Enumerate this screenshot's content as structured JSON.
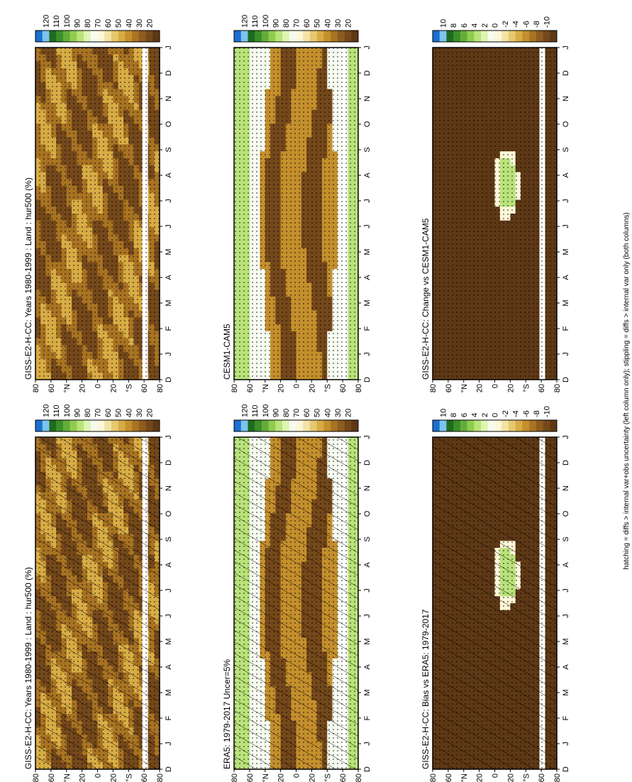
{
  "footnote": "hatching = diffs > internal var+obs uncertainty (left column only); stippling = diffs > internal var only (both columns)",
  "month_labels": [
    "D",
    "J",
    "F",
    "M",
    "A",
    "M",
    "J",
    "J",
    "A",
    "S",
    "O",
    "N",
    "D",
    "J"
  ],
  "lat_labels": [
    "80",
    "60",
    "°N",
    "20",
    "0",
    "20",
    "°S",
    "60",
    "80"
  ],
  "abs_scale": {
    "labels": [
      "120",
      "110",
      "100",
      "90",
      "80",
      "70",
      "60",
      "50",
      "40",
      "30",
      "20"
    ],
    "colors": [
      "#1a6fd1",
      "#7cc3ee",
      "#1e6b1e",
      "#3a8f2a",
      "#62ad3a",
      "#8fcc4e",
      "#b9e37a",
      "#def5b2",
      "#f6fbf0",
      "#fdf6d8",
      "#f3e3a6",
      "#e6c870",
      "#d8ac45",
      "#c48f2c",
      "#a87322",
      "#8d5c1e",
      "#74481a",
      "#5e3815"
    ]
  },
  "diff_scale": {
    "labels": [
      "10",
      "8",
      "6",
      "4",
      "2",
      "0",
      "-2",
      "-4",
      "-6",
      "-8",
      "-10"
    ],
    "colors": [
      "#1a6fd1",
      "#7cc3ee",
      "#1e6b1e",
      "#3a8f2a",
      "#62ad3a",
      "#8fcc4e",
      "#b9e37a",
      "#def5b2",
      "#f6fbf0",
      "#fdf6d8",
      "#f3e3a6",
      "#e6c870",
      "#d8ac45",
      "#c48f2c",
      "#a87322",
      "#8d5c1e",
      "#74481a",
      "#5e3815"
    ]
  },
  "chart_data": [
    {
      "type": "heatmap",
      "id": "tl",
      "title": "GISS-E2-H-CC: Years 1980-1999 : Land : hur500 (%)",
      "xlabel": "",
      "ylabel": "",
      "x_categories": [
        "D",
        "J",
        "F",
        "M",
        "A",
        "M",
        "J",
        "J",
        "A",
        "S",
        "O",
        "N",
        "D",
        "J"
      ],
      "y_ticks": [
        "80",
        "60",
        "°N",
        "20",
        "0",
        "20",
        "°S",
        "60",
        "80"
      ],
      "colorbar": "abs",
      "hatching": true,
      "stippling": true,
      "description_values": {
        "dominant_range": [
          20,
          45
        ]
      }
    },
    {
      "type": "heatmap",
      "id": "tr",
      "title": "GISS-E2-H-CC: Years 1980-1999 : Land : hur500 (%)",
      "xlabel": "",
      "ylabel": "",
      "x_categories": [
        "D",
        "J",
        "F",
        "M",
        "A",
        "M",
        "J",
        "J",
        "A",
        "S",
        "O",
        "N",
        "D",
        "J"
      ],
      "y_ticks": [
        "80",
        "60",
        "°N",
        "20",
        "0",
        "20",
        "°S",
        "60",
        "80"
      ],
      "colorbar": "abs",
      "hatching": false,
      "stippling": true,
      "description_values": {
        "dominant_range": [
          20,
          45
        ]
      }
    },
    {
      "type": "heatmap",
      "id": "ml",
      "title": "ERA5: 1979-2017 Uncer=5%",
      "xlabel": "",
      "ylabel": "",
      "x_categories": [
        "D",
        "J",
        "F",
        "M",
        "A",
        "M",
        "J",
        "J",
        "A",
        "S",
        "O",
        "N",
        "D",
        "J"
      ],
      "y_ticks": [
        "80",
        "60",
        "°N",
        "20",
        "0",
        "20",
        "°S",
        "60",
        "80"
      ],
      "colorbar": "abs",
      "hatching": true,
      "stippling": true,
      "description_values": {
        "high_lat_range": [
          80,
          95
        ],
        "subtropic_range": [
          25,
          45
        ]
      }
    },
    {
      "type": "heatmap",
      "id": "mr",
      "title": "CESM1-CAM5",
      "xlabel": "",
      "ylabel": "",
      "x_categories": [
        "D",
        "J",
        "F",
        "M",
        "A",
        "M",
        "J",
        "J",
        "A",
        "S",
        "O",
        "N",
        "D",
        "J"
      ],
      "y_ticks": [
        "80",
        "60",
        "°N",
        "20",
        "0",
        "20",
        "°S",
        "60",
        "80"
      ],
      "colorbar": "abs",
      "hatching": false,
      "stippling": true,
      "description_values": {
        "high_lat_range": [
          80,
          95
        ],
        "subtropic_range": [
          25,
          45
        ]
      }
    },
    {
      "type": "heatmap",
      "id": "bl",
      "title": "GISS-E2-H-CC: Bias vs ERA5: 1979-2017",
      "xlabel": "",
      "ylabel": "",
      "x_categories": [
        "D",
        "J",
        "F",
        "M",
        "A",
        "M",
        "J",
        "J",
        "A",
        "S",
        "O",
        "N",
        "D",
        "J"
      ],
      "y_ticks": [
        "80",
        "60",
        "°N",
        "20",
        "0",
        "20",
        "°S",
        "60",
        "80"
      ],
      "colorbar": "diff",
      "hatching": true,
      "stippling": true,
      "description_values": {
        "dominant_value": -10
      }
    },
    {
      "type": "heatmap",
      "id": "br",
      "title": "GISS-E2-H-CC: Change vs CESM1-CAM5",
      "xlabel": "",
      "ylabel": "",
      "x_categories": [
        "D",
        "J",
        "F",
        "M",
        "A",
        "M",
        "J",
        "J",
        "A",
        "S",
        "O",
        "N",
        "D",
        "J"
      ],
      "y_ticks": [
        "80",
        "60",
        "°N",
        "20",
        "0",
        "20",
        "°S",
        "60",
        "80"
      ],
      "colorbar": "diff",
      "hatching": false,
      "stippling": true,
      "description_values": {
        "dominant_value": -10
      }
    }
  ]
}
